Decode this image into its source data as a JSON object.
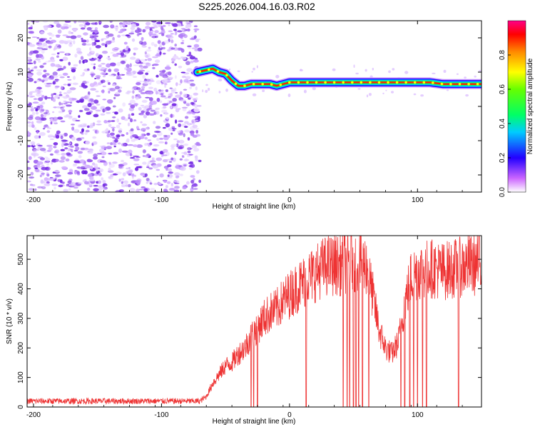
{
  "title": "S225.2026.004.16.03.R02",
  "chart_data": [
    {
      "type": "heatmap",
      "xlabel": "Height of straight line (km)",
      "ylabel": "Frequency (Hz)",
      "xlim": [
        -205,
        150
      ],
      "ylim": [
        -25,
        25
      ],
      "xticks": [
        -200,
        -100,
        0,
        100
      ],
      "yticks": [
        -20,
        -10,
        0,
        10,
        20
      ],
      "grid": false,
      "noise_region_x": [
        -205,
        -70
      ],
      "dominant_frequency_trace": {
        "x": [
          -72,
          -66,
          -60,
          -55,
          -50,
          -45,
          -40,
          -35,
          -30,
          -25,
          -20,
          -15,
          -10,
          -5,
          0,
          10,
          20,
          30,
          40,
          50,
          60,
          70,
          80,
          90,
          100,
          110,
          120,
          130,
          140,
          150
        ],
        "y": [
          10,
          10.5,
          11,
          10,
          9.5,
          7.5,
          6,
          6,
          6.5,
          6.5,
          6.5,
          6.5,
          6,
          6.5,
          7,
          7,
          7,
          7,
          7,
          7,
          7,
          7,
          7,
          7,
          7,
          7,
          6.5,
          6.5,
          6.5,
          6.5
        ]
      },
      "colorbar": {
        "label": "Normalized spectral amplitude",
        "ticks": [
          0.0,
          0.2,
          0.4,
          0.6,
          0.8
        ],
        "range": [
          0,
          1
        ],
        "colors": [
          "#ffffff",
          "#7b00e0",
          "#0000ff",
          "#00e0ff",
          "#00ff00",
          "#ffff00",
          "#ff8000",
          "#ff0000",
          "#ff0080"
        ]
      }
    },
    {
      "type": "line",
      "xlabel": "Height of straight line (km)",
      "ylabel": "SNR (10 * v/v)",
      "xlim": [
        -205,
        150
      ],
      "ylim": [
        0,
        580
      ],
      "xticks": [
        -200,
        -100,
        0,
        100
      ],
      "yticks": [
        0,
        100,
        200,
        300,
        400,
        500
      ],
      "grid": false,
      "color": "#ee3333",
      "series": [
        {
          "x": [
            -205,
            -180,
            -160,
            -140,
            -120,
            -100,
            -80,
            -70,
            -65,
            -60,
            -55,
            -50,
            -45,
            -40,
            -35,
            -30,
            -25,
            -20,
            -15,
            -10,
            -5,
            0,
            5,
            10,
            15,
            20,
            25,
            30,
            35,
            40,
            45,
            50,
            55,
            60,
            65,
            70,
            75,
            80,
            85,
            90,
            95,
            100,
            110,
            120,
            130,
            140,
            150
          ],
          "values": [
            20,
            20,
            20,
            20,
            20,
            20,
            20,
            20,
            35,
            80,
            110,
            140,
            150,
            180,
            200,
            240,
            270,
            300,
            320,
            330,
            360,
            380,
            400,
            420,
            440,
            450,
            470,
            480,
            480,
            480,
            490,
            500,
            490,
            480,
            380,
            260,
            200,
            180,
            220,
            350,
            440,
            460,
            470,
            460,
            470,
            480,
            480
          ]
        }
      ],
      "dropouts_x": [
        -30,
        -28,
        -25,
        13,
        42,
        45,
        47,
        50,
        52,
        54,
        57,
        62,
        87,
        90,
        94,
        97,
        100,
        104,
        107,
        132
      ]
    }
  ]
}
